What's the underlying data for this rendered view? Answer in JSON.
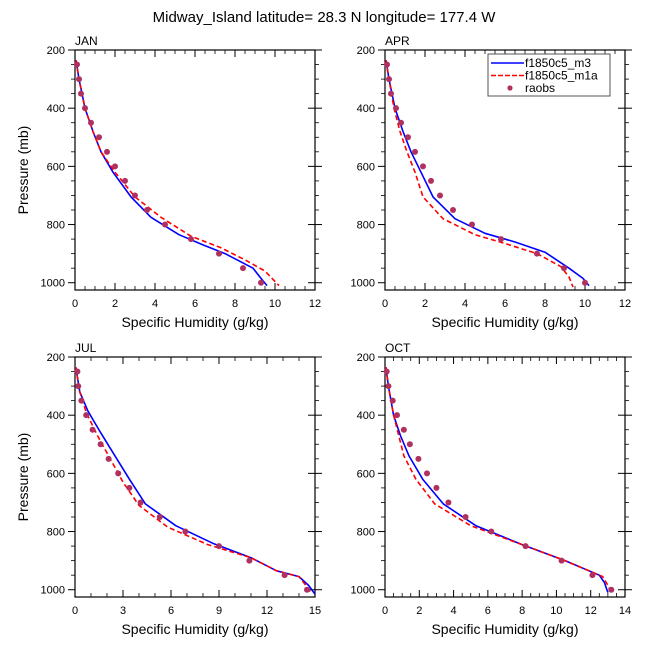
{
  "figure": {
    "title": "Midway_Island  latitude= 28.3 N longitude= 177.4 W"
  },
  "legend": {
    "entries": [
      {
        "label": "f1850c5_m3",
        "style": "solid-line",
        "color": "#0000ff"
      },
      {
        "label": "f1850c5_m1a",
        "style": "dashed-line",
        "color": "#ff0000"
      },
      {
        "label": "raobs",
        "style": "marker",
        "color": "#b03060"
      }
    ]
  },
  "colors": {
    "m3": "#0000ff",
    "m1a": "#ff0000",
    "raobs": "#b03060",
    "axes": "#000000"
  },
  "chart_data": [
    {
      "type": "line",
      "panel": "JAN",
      "title": "JAN",
      "xlabel": "Specific Humidity (g/kg)",
      "ylabel": "Pressure (mb)",
      "xlim": [
        0,
        12
      ],
      "ylim": [
        1025,
        200
      ],
      "y_inverted": true,
      "xticks": [
        0,
        2,
        4,
        6,
        8,
        10,
        12
      ],
      "yticks": [
        200,
        400,
        600,
        800,
        1000
      ],
      "series": [
        {
          "name": "f1850c5_m3",
          "kind": "line",
          "x": [
            0.05,
            0.2,
            0.5,
            0.9,
            1.3,
            1.9,
            2.8,
            3.8,
            5.2,
            6.4,
            7.5,
            8.9,
            9.3,
            9.6
          ],
          "y": [
            235,
            300,
            400,
            480,
            550,
            620,
            705,
            775,
            835,
            870,
            900,
            950,
            985,
            1010
          ]
        },
        {
          "name": "f1850c5_m1a",
          "kind": "dashed",
          "x": [
            0.05,
            0.2,
            0.5,
            0.9,
            1.3,
            2.0,
            3.0,
            4.3,
            5.8,
            7.3,
            8.6,
            9.5,
            10.2
          ],
          "y": [
            235,
            300,
            400,
            480,
            550,
            620,
            705,
            775,
            840,
            880,
            925,
            960,
            1010
          ]
        },
        {
          "name": "raobs",
          "kind": "points",
          "x": [
            0.1,
            0.2,
            0.3,
            0.5,
            0.8,
            1.2,
            1.6,
            2.0,
            2.5,
            3.0,
            3.6,
            4.5,
            5.8,
            7.2,
            8.4,
            9.3
          ],
          "y": [
            250,
            300,
            350,
            400,
            450,
            500,
            550,
            600,
            650,
            700,
            750,
            800,
            850,
            900,
            950,
            1000
          ]
        }
      ]
    },
    {
      "type": "line",
      "panel": "APR",
      "title": "APR",
      "xlabel": "Specific Humidity (g/kg)",
      "ylabel": "",
      "xlim": [
        0,
        12
      ],
      "ylim": [
        1025,
        200
      ],
      "y_inverted": true,
      "xticks": [
        0,
        2,
        4,
        6,
        8,
        10,
        12
      ],
      "yticks": [
        200,
        400,
        600,
        800,
        1000
      ],
      "series": [
        {
          "name": "f1850c5_m3",
          "kind": "line",
          "x": [
            0.05,
            0.2,
            0.5,
            0.9,
            1.3,
            1.8,
            2.4,
            3.5,
            5.0,
            6.5,
            8.0,
            9.2,
            9.9,
            10.2
          ],
          "y": [
            235,
            300,
            400,
            480,
            550,
            620,
            705,
            780,
            830,
            860,
            895,
            950,
            985,
            1010
          ]
        },
        {
          "name": "f1850c5_m1a",
          "kind": "dashed",
          "x": [
            0.05,
            0.2,
            0.45,
            0.75,
            1.1,
            1.5,
            1.9,
            2.9,
            4.5,
            6.0,
            7.6,
            8.8,
            9.2,
            9.4
          ],
          "y": [
            235,
            300,
            400,
            480,
            550,
            620,
            705,
            780,
            835,
            865,
            900,
            945,
            980,
            1015
          ]
        },
        {
          "name": "raobs",
          "kind": "points",
          "x": [
            0.1,
            0.2,
            0.3,
            0.55,
            0.8,
            1.15,
            1.5,
            1.9,
            2.3,
            2.75,
            3.4,
            4.35,
            5.8,
            7.6,
            8.95,
            10.0
          ],
          "y": [
            250,
            300,
            350,
            400,
            450,
            500,
            550,
            600,
            650,
            700,
            750,
            800,
            850,
            900,
            950,
            1000
          ]
        }
      ]
    },
    {
      "type": "line",
      "panel": "JUL",
      "title": "JUL",
      "xlabel": "Specific Humidity (g/kg)",
      "ylabel": "Pressure (mb)",
      "xlim": [
        0,
        15
      ],
      "ylim": [
        1025,
        200
      ],
      "y_inverted": true,
      "xticks": [
        0,
        3,
        6,
        9,
        12,
        15
      ],
      "yticks": [
        200,
        400,
        600,
        800,
        1000
      ],
      "series": [
        {
          "name": "f1850c5_m3",
          "kind": "line",
          "x": [
            0.05,
            0.3,
            0.8,
            1.6,
            2.5,
            3.4,
            4.4,
            6.3,
            8.6,
            11.0,
            12.6,
            14.0,
            14.6,
            15.0
          ],
          "y": [
            235,
            320,
            385,
            460,
            540,
            620,
            705,
            780,
            840,
            890,
            935,
            955,
            985,
            1015
          ]
        },
        {
          "name": "f1850c5_m1a",
          "kind": "dashed",
          "x": [
            0.05,
            0.3,
            0.7,
            1.4,
            2.2,
            3.0,
            4.0,
            5.8,
            8.3,
            11.0,
            12.6,
            14.0,
            14.5,
            14.8
          ],
          "y": [
            235,
            320,
            390,
            470,
            550,
            630,
            710,
            785,
            845,
            890,
            935,
            955,
            990,
            1015
          ]
        },
        {
          "name": "raobs",
          "kind": "points",
          "x": [
            0.15,
            0.2,
            0.4,
            0.7,
            1.1,
            1.6,
            2.1,
            2.7,
            3.4,
            4.1,
            5.3,
            6.9,
            9.0,
            10.9,
            13.1,
            14.5
          ],
          "y": [
            250,
            300,
            350,
            400,
            450,
            500,
            550,
            600,
            650,
            700,
            750,
            800,
            850,
            900,
            950,
            1000
          ]
        }
      ]
    },
    {
      "type": "line",
      "panel": "OCT",
      "title": "OCT",
      "xlabel": "Specific Humidity (g/kg)",
      "ylabel": "",
      "xlim": [
        0,
        14
      ],
      "ylim": [
        1025,
        200
      ],
      "y_inverted": true,
      "xticks": [
        0,
        2,
        4,
        6,
        8,
        10,
        12,
        14
      ],
      "yticks": [
        200,
        400,
        600,
        800,
        1000
      ],
      "series": [
        {
          "name": "f1850c5_m3",
          "kind": "line",
          "x": [
            0.05,
            0.2,
            0.5,
            0.9,
            1.4,
            2.2,
            3.4,
            5.3,
            8.0,
            10.5,
            12.5,
            12.8,
            13.0
          ],
          "y": [
            235,
            300,
            400,
            470,
            540,
            620,
            705,
            780,
            845,
            900,
            950,
            975,
            1010
          ]
        },
        {
          "name": "f1850c5_m1a",
          "kind": "dashed",
          "x": [
            0.05,
            0.2,
            0.5,
            0.8,
            1.1,
            1.8,
            2.9,
            5.0,
            8.0,
            10.5,
            12.7,
            13.0,
            13.2
          ],
          "y": [
            235,
            300,
            400,
            470,
            540,
            620,
            705,
            780,
            845,
            900,
            955,
            985,
            1010
          ]
        },
        {
          "name": "raobs",
          "kind": "points",
          "x": [
            0.1,
            0.2,
            0.45,
            0.7,
            1.1,
            1.45,
            1.95,
            2.45,
            3.0,
            3.7,
            4.7,
            6.2,
            8.2,
            10.3,
            12.1,
            13.2
          ],
          "y": [
            250,
            300,
            350,
            400,
            450,
            500,
            550,
            600,
            650,
            700,
            750,
            800,
            850,
            900,
            950,
            1000
          ]
        }
      ]
    }
  ]
}
